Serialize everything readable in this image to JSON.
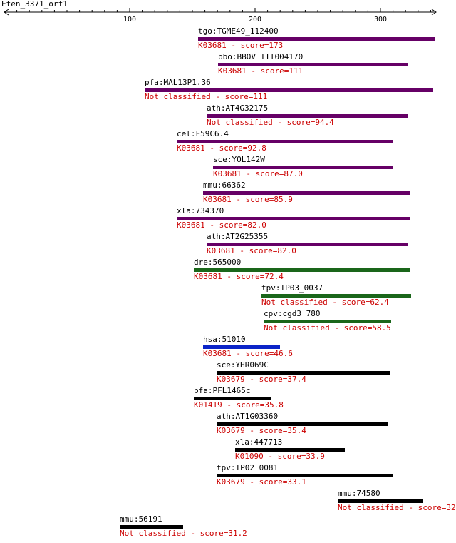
{
  "title": "Eten_3371_orf1",
  "ruler": {
    "ticks": [
      "100",
      "200",
      "300"
    ]
  },
  "colors": {
    "score_text": "#cc0000",
    "purple": "#660066",
    "green": "#1a661a",
    "blue": "#0b24c8",
    "black": "#000000"
  },
  "hits": [
    {
      "name": "tgo:TGME49_112400",
      "score": "K03681 - score=173",
      "color": "purple"
    },
    {
      "name": "bbo:BBOV_III004170",
      "score": "K03681 - score=111",
      "color": "purple"
    },
    {
      "name": "pfa:MAL13P1.36",
      "score": "Not classified - score=111",
      "color": "purple"
    },
    {
      "name": "ath:AT4G32175",
      "score": "Not classified - score=94.4",
      "color": "purple"
    },
    {
      "name": "cel:F59C6.4",
      "score": "K03681 - score=92.8",
      "color": "purple"
    },
    {
      "name": "sce:YOL142W",
      "score": "K03681 - score=87.0",
      "color": "purple"
    },
    {
      "name": "mmu:66362",
      "score": "K03681 - score=85.9",
      "color": "purple"
    },
    {
      "name": "xla:734370",
      "score": "K03681 - score=82.0",
      "color": "purple"
    },
    {
      "name": "ath:AT2G25355",
      "score": "K03681 - score=82.0",
      "color": "purple"
    },
    {
      "name": "dre:565000",
      "score": "K03681 - score=72.4",
      "color": "green"
    },
    {
      "name": "tpv:TP03_0037",
      "score": "Not classified - score=62.4",
      "color": "green"
    },
    {
      "name": "cpv:cgd3_780",
      "score": "Not classified - score=58.5",
      "color": "green"
    },
    {
      "name": "hsa:51010",
      "score": "K03681 - score=46.6",
      "color": "blue"
    },
    {
      "name": "sce:YHR069C",
      "score": "K03679 - score=37.4",
      "color": "black"
    },
    {
      "name": "pfa:PFL1465c",
      "score": "K01419 - score=35.8",
      "color": "black"
    },
    {
      "name": "ath:AT1G03360",
      "score": "K03679 - score=35.4",
      "color": "black"
    },
    {
      "name": "xla:447713",
      "score": "K01090 - score=33.9",
      "color": "black"
    },
    {
      "name": "tpv:TP02_0081",
      "score": "K03679 - score=33.1",
      "color": "black"
    },
    {
      "name": "mmu:74580",
      "score": "Not classified - score=32",
      "color": "black"
    },
    {
      "name": "mmu:56191",
      "score": "Not classified - score=31.2",
      "color": "black"
    }
  ]
}
